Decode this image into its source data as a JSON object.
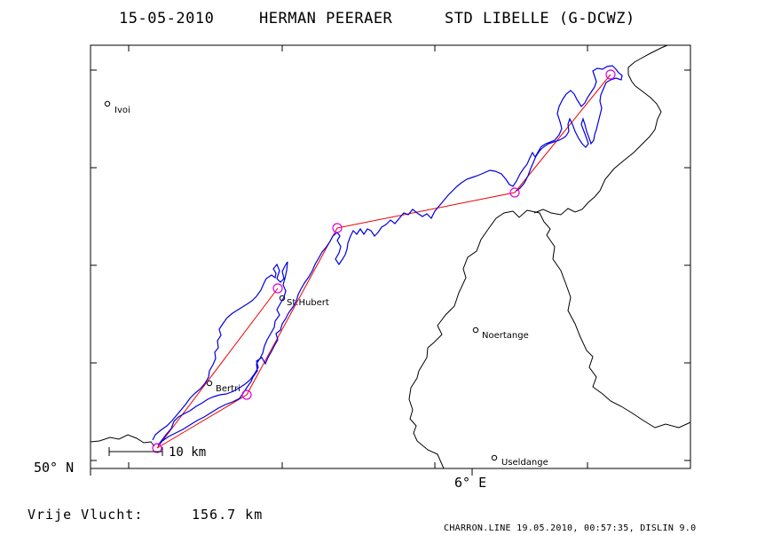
{
  "title": {
    "date": "15-05-2010",
    "pilot": "HERMAN PEERAER",
    "glider": "STD LIBELLE (G-DCWZ)"
  },
  "axes": {
    "lat_label": "50° N",
    "lon_label": "6° E"
  },
  "towns": [
    {
      "name": "Ivoi"
    },
    {
      "name": "St.Hubert"
    },
    {
      "name": "Bertri"
    },
    {
      "name": "Noertange"
    },
    {
      "name": "Useldange"
    }
  ],
  "scale_bar": {
    "label": "10 km"
  },
  "distance": {
    "label": "Vrije Vlucht:",
    "value": "156.7 km"
  },
  "footer": "CHARRON.LINE 19.05.2010, 00:57:35, DISLIN 9.0",
  "colors": {
    "track": "#0000dd",
    "task": "#ee0000",
    "turnpoint": "#dd00dd",
    "border": "#000000"
  }
}
